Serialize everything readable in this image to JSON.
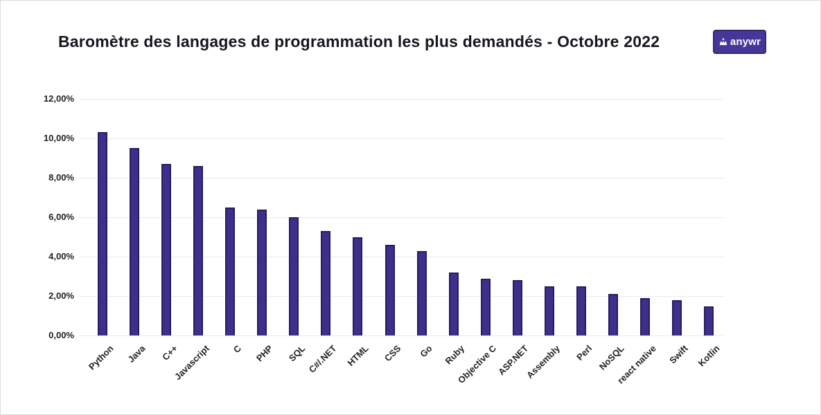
{
  "header": {
    "title": "Baromètre des langages de programmation les plus demandés - Octobre 2022",
    "logo": {
      "text": "anywr",
      "icon": "anywr-crown-icon",
      "bg_color": "#473699",
      "text_color": "#ffffff"
    }
  },
  "chart_data": {
    "type": "bar",
    "title": "Baromètre des langages de programmation les plus demandés - Octobre 2022",
    "categories": [
      "Python",
      "Java",
      "C++",
      "Javascript",
      "C",
      "PHP",
      "SQL",
      "C#/.NET",
      "HTML",
      "CSS",
      "Go",
      "Ruby",
      "Objective C",
      "ASP.NET",
      "Assembly",
      "Perl",
      "NoSQL",
      "react native",
      "Swift",
      "Kotlin"
    ],
    "values": [
      10.3,
      9.5,
      8.7,
      8.6,
      6.5,
      6.4,
      6.0,
      5.3,
      5.0,
      4.6,
      4.3,
      3.2,
      2.9,
      2.8,
      2.5,
      2.5,
      2.1,
      1.9,
      1.8,
      1.5
    ],
    "value_unit": "%",
    "xlabel": "",
    "ylabel": "",
    "ylim": [
      0,
      12
    ],
    "yticks": [
      {
        "value": 0,
        "label": "0,00%"
      },
      {
        "value": 2,
        "label": "2,00%"
      },
      {
        "value": 4,
        "label": "4,00%"
      },
      {
        "value": 6,
        "label": "6,00%"
      },
      {
        "value": 8,
        "label": "8,00%"
      },
      {
        "value": 10,
        "label": "10,00%"
      },
      {
        "value": 12,
        "label": "12,00%"
      }
    ],
    "grid": true,
    "legend": "none",
    "colors": {
      "bar_fill": "#3f2f8c",
      "bar_border": "#2a1b5e",
      "gridline": "#ece8f4",
      "tick_text": "#222222"
    }
  }
}
